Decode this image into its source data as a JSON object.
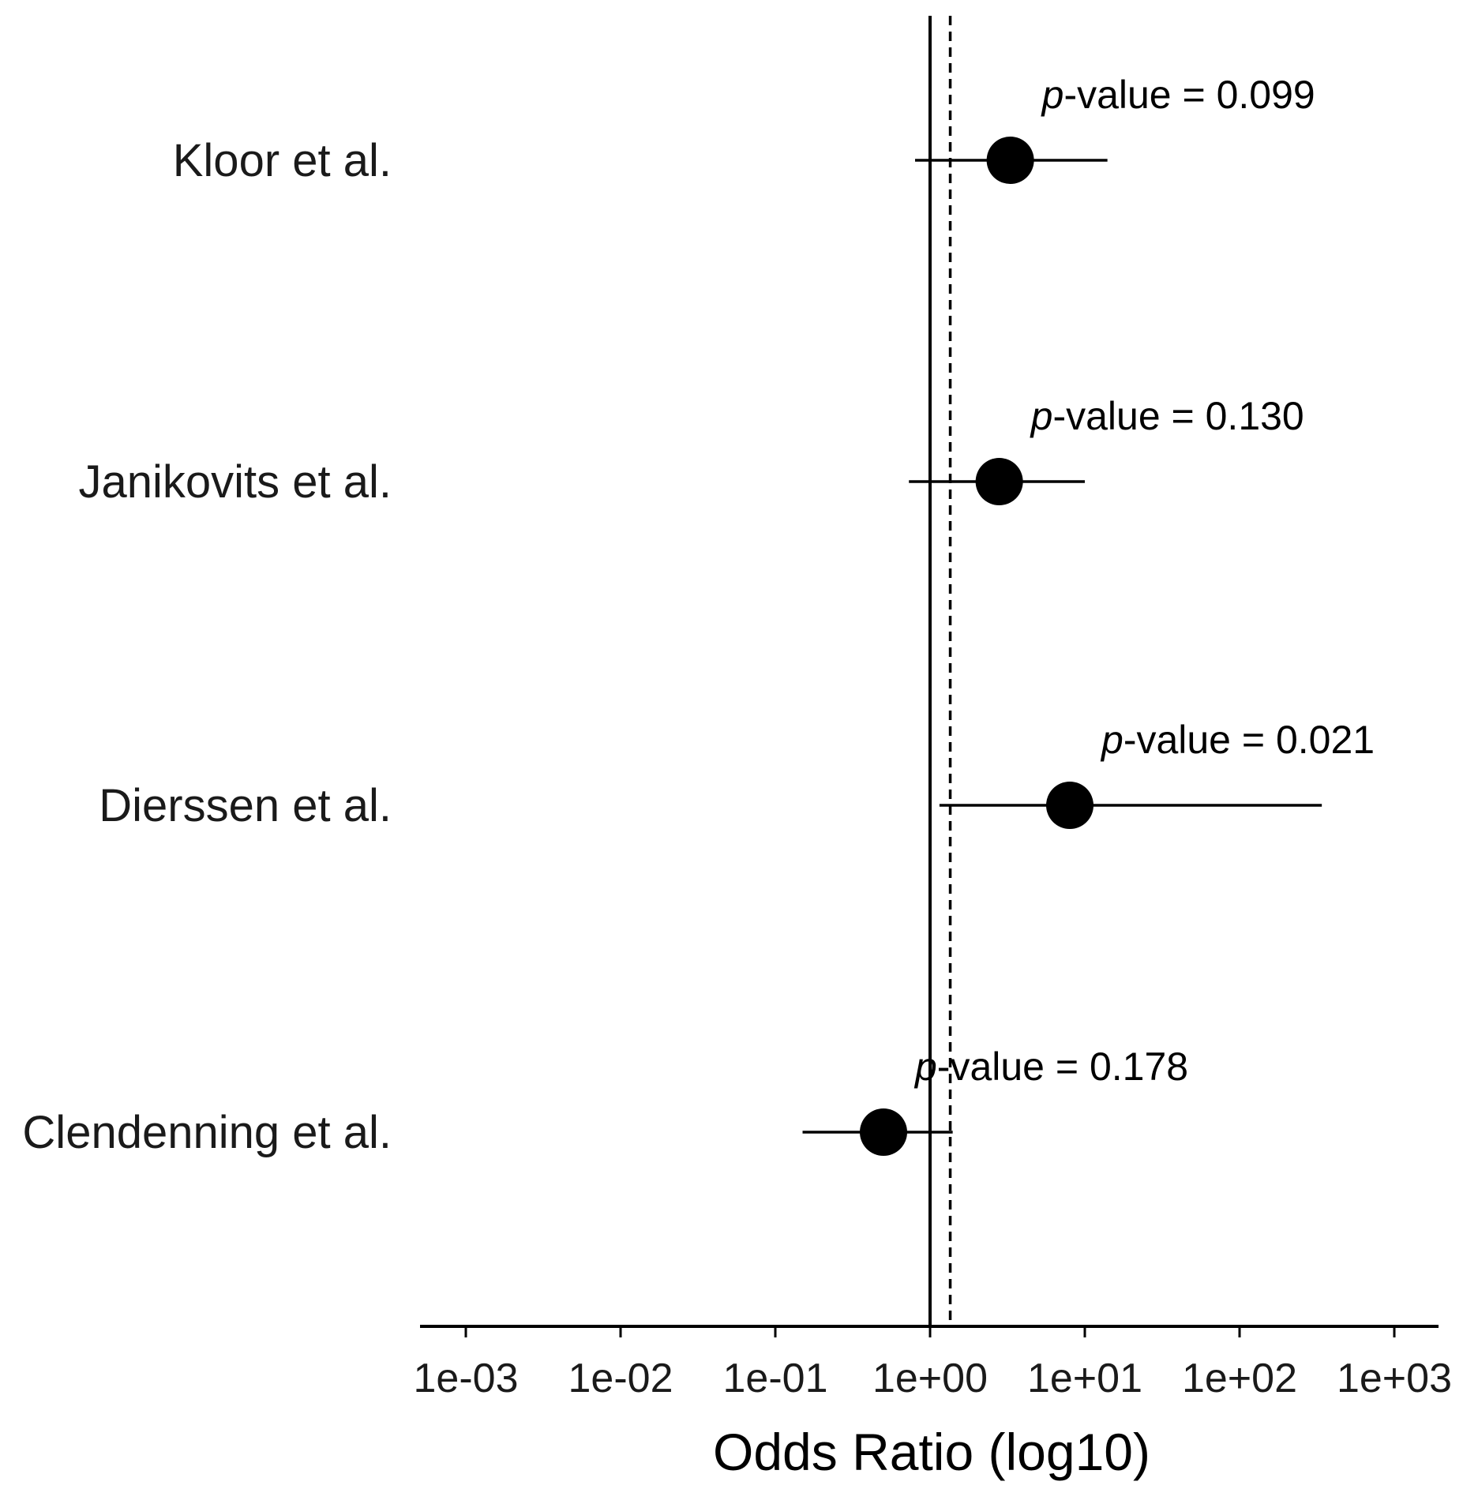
{
  "chart_data": {
    "type": "scatter",
    "subtype": "forest-plot",
    "xlabel": "Odds Ratio (log10)",
    "xscale": "log10",
    "xlim": [
      0.001,
      1000
    ],
    "xticks": [
      0.001,
      0.01,
      0.1,
      1,
      10,
      100,
      1000
    ],
    "xtick_labels": [
      "1e-03",
      "1e-02",
      "1e-01",
      "1e+00",
      "1e+01",
      "1e+02",
      "1e+03"
    ],
    "reference_line": 1,
    "pooled_estimate_dashed_line": 1.35,
    "p_prefix": "p",
    "p_suffix": "-value = ",
    "studies": [
      {
        "label": "Kloor et al.",
        "or": 3.3,
        "ci_low": 0.8,
        "ci_high": 14,
        "p_value": "0.099"
      },
      {
        "label": "Janikovits et al.",
        "or": 2.8,
        "ci_low": 0.73,
        "ci_high": 10,
        "p_value": "0.130"
      },
      {
        "label": "Dierssen et al.",
        "or": 8,
        "ci_low": 1.15,
        "ci_high": 340,
        "p_value": "0.021"
      },
      {
        "label": "Clendenning et al.",
        "or": 0.5,
        "ci_low": 0.15,
        "ci_high": 1.4,
        "p_value": "0.178"
      }
    ],
    "colors": {
      "marker": "#000000",
      "lines": "#000000",
      "text": "#1a1a1a"
    }
  }
}
